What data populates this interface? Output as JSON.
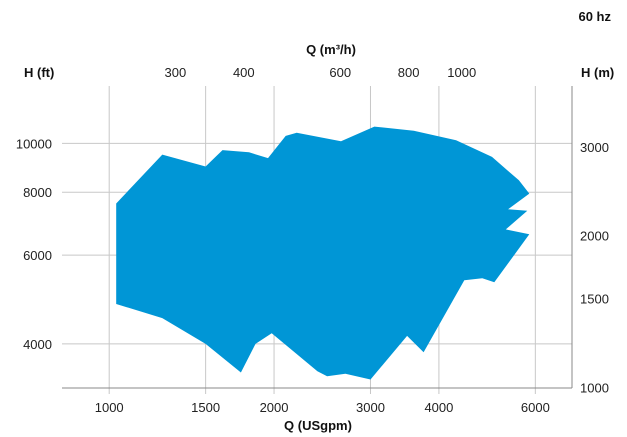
{
  "chart_data": {
    "type": "area",
    "corner_label": "60 hz",
    "title": "",
    "xlabel_bottom": "Q (USgpm)",
    "xlabel_top": "Q (m³/h)",
    "ylabel_left": "H (ft)",
    "ylabel_right": "H (m)",
    "x_scale": "log",
    "y_scale": "log",
    "grid": true,
    "xlim": [
      820,
      7000
    ],
    "ylim": [
      3270,
      13000
    ],
    "fill_color": "#0096d6",
    "bottom_ticks": [
      1000,
      1500,
      2000,
      3000,
      4000,
      6000
    ],
    "top_ticks": [
      300,
      400,
      600,
      800,
      1000
    ],
    "left_ticks": [
      4000,
      6000,
      8000,
      10000
    ],
    "right_ticks": [
      1000,
      1500,
      2000,
      3000
    ],
    "bottom_tick_labels": [
      "1000",
      "1500",
      "2000",
      "3000",
      "4000",
      "6000"
    ],
    "top_tick_labels": [
      "300",
      "400",
      "600",
      "800",
      "1000"
    ],
    "left_tick_labels": [
      "4000",
      "6000",
      "8000",
      "10000"
    ],
    "right_tick_labels": [
      "1000",
      "1500",
      "2000",
      "3000"
    ],
    "envelope_polygon": [
      [
        1030,
        7600
      ],
      [
        1250,
        9500
      ],
      [
        1500,
        9000
      ],
      [
        1610,
        9700
      ],
      [
        1800,
        9600
      ],
      [
        1950,
        9350
      ],
      [
        2100,
        10350
      ],
      [
        2200,
        10500
      ],
      [
        2650,
        10100
      ],
      [
        3050,
        10800
      ],
      [
        3600,
        10600
      ],
      [
        4300,
        10150
      ],
      [
        5000,
        9400
      ],
      [
        5600,
        8450
      ],
      [
        5850,
        7950
      ],
      [
        5350,
        7400
      ],
      [
        5800,
        7350
      ],
      [
        5300,
        6750
      ],
      [
        5850,
        6600
      ],
      [
        5050,
        5300
      ],
      [
        4800,
        5400
      ],
      [
        4450,
        5350
      ],
      [
        3750,
        3850
      ],
      [
        3500,
        4150
      ],
      [
        3000,
        3400
      ],
      [
        2700,
        3490
      ],
      [
        2500,
        3450
      ],
      [
        2400,
        3530
      ],
      [
        1980,
        4200
      ],
      [
        1850,
        4000
      ],
      [
        1740,
        3510
      ],
      [
        1500,
        4000
      ],
      [
        1250,
        4500
      ],
      [
        1030,
        4800
      ]
    ]
  }
}
